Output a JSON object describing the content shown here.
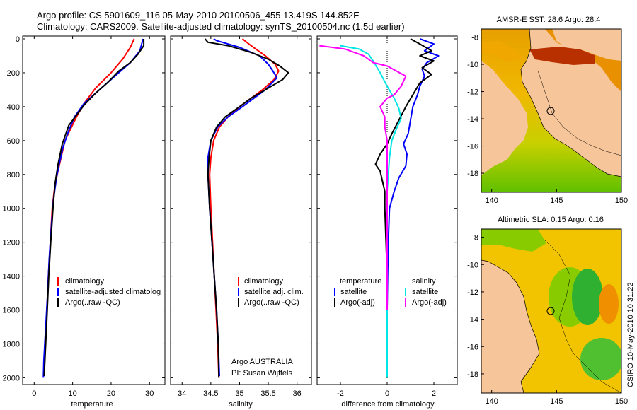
{
  "header": {
    "line1": "Argo profile: CS 5901609_116 05-May-2010 20100506_455 13.419S 144.852E",
    "line2": "Climatology: CARS2009. Satellite-adjusted climatology: synTS_20100504.nc (1.5d earlier)"
  },
  "stamp": "CSIRO 10-May-2010 10:31:22",
  "colors": {
    "climatology": "#ff0000",
    "satellite": "#0000ff",
    "argo": "#000000",
    "cyan": "#00e5e5",
    "magenta": "#ff00ff"
  },
  "chart_data": [
    {
      "type": "line",
      "xlabel": "temperature",
      "ylabel": "",
      "xlim": [
        -3,
        34
      ],
      "ylim": [
        2050,
        0
      ],
      "xticks": [
        0,
        10,
        20,
        30
      ],
      "yticks": [
        0,
        200,
        400,
        600,
        800,
        1000,
        1200,
        1400,
        1600,
        1800,
        2000
      ],
      "legend": [
        "climatology",
        "satellite-adjusted climatolog",
        "Argo(..raw -QC)"
      ],
      "series": [
        {
          "name": "climatology",
          "color": "#ff0000",
          "points": [
            [
              26,
              0
            ],
            [
              25,
              50
            ],
            [
              23,
              120
            ],
            [
              20,
              200
            ],
            [
              16,
              290
            ],
            [
              13,
              380
            ],
            [
              11,
              460
            ],
            [
              9.5,
              530
            ],
            [
              8,
              600
            ],
            [
              7,
              700
            ],
            [
              6,
              800
            ],
            [
              5.2,
              900
            ],
            [
              4.7,
              1000
            ],
            [
              4.2,
              1200
            ],
            [
              3.7,
              1400
            ],
            [
              3.3,
              1600
            ],
            [
              2.9,
              1800
            ],
            [
              2.6,
              1900
            ]
          ]
        },
        {
          "name": "satellite-adjusted climatolog",
          "color": "#0000ff",
          "points": [
            [
              28.3,
              0
            ],
            [
              27.5,
              70
            ],
            [
              25,
              140
            ],
            [
              22,
              200
            ],
            [
              17,
              300
            ],
            [
              13,
              380
            ],
            [
              10.5,
              460
            ],
            [
              9,
              540
            ],
            [
              7.5,
              640
            ],
            [
              6.5,
              740
            ],
            [
              5.8,
              820
            ],
            [
              5,
              950
            ],
            [
              4.5,
              1100
            ],
            [
              3.9,
              1300
            ],
            [
              3.5,
              1500
            ],
            [
              3,
              1700
            ],
            [
              2.5,
              1900
            ],
            [
              2.4,
              2000
            ]
          ]
        },
        {
          "name": "Argo(..raw -QC)",
          "color": "#000000",
          "points": [
            [
              28.5,
              0
            ],
            [
              28.5,
              40
            ],
            [
              27,
              90
            ],
            [
              25,
              140
            ],
            [
              22,
              190
            ],
            [
              19,
              260
            ],
            [
              16,
              320
            ],
            [
              13,
              390
            ],
            [
              11,
              450
            ],
            [
              9,
              510
            ],
            [
              7.3,
              620
            ],
            [
              6.2,
              740
            ],
            [
              5.4,
              860
            ],
            [
              4.9,
              1000
            ],
            [
              4.3,
              1200
            ],
            [
              3.8,
              1400
            ],
            [
              3.4,
              1600
            ],
            [
              3,
              1800
            ],
            [
              2.6,
              1990
            ]
          ]
        }
      ]
    },
    {
      "type": "line",
      "xlabel": "salinity",
      "ylabel": "",
      "xlim": [
        33.8,
        36.25
      ],
      "ylim": [
        2050,
        0
      ],
      "xticks": [
        34,
        34.5,
        35,
        35.5,
        36
      ],
      "legend": [
        "climatology",
        "satellite adj. clim.",
        "Argo(..raw -QC)"
      ],
      "annotation": [
        "Argo AUSTRALIA",
        "PI: Susan Wijffels"
      ],
      "series": [
        {
          "name": "climatology",
          "color": "#ff0000",
          "points": [
            [
              35.05,
              0
            ],
            [
              35.2,
              40
            ],
            [
              35.45,
              100
            ],
            [
              35.62,
              150
            ],
            [
              35.68,
              190
            ],
            [
              35.6,
              240
            ],
            [
              35.4,
              300
            ],
            [
              35.2,
              350
            ],
            [
              35,
              400
            ],
            [
              34.8,
              460
            ],
            [
              34.65,
              520
            ],
            [
              34.55,
              600
            ],
            [
              34.5,
              700
            ],
            [
              34.48,
              800
            ],
            [
              34.5,
              1000
            ],
            [
              34.53,
              1200
            ],
            [
              34.56,
              1400
            ],
            [
              34.59,
              1600
            ],
            [
              34.62,
              1800
            ],
            [
              34.64,
              2000
            ]
          ]
        },
        {
          "name": "satellite adj. clim.",
          "color": "#0000ff",
          "points": [
            [
              34.55,
              0
            ],
            [
              34.6,
              10
            ],
            [
              35.0,
              50
            ],
            [
              35.35,
              100
            ],
            [
              35.5,
              150
            ],
            [
              35.58,
              190
            ],
            [
              35.65,
              230
            ],
            [
              35.45,
              300
            ],
            [
              35.25,
              350
            ],
            [
              35.05,
              400
            ],
            [
              34.8,
              460
            ],
            [
              34.62,
              520
            ],
            [
              34.5,
              600
            ],
            [
              34.45,
              700
            ],
            [
              34.45,
              800
            ],
            [
              34.48,
              1000
            ],
            [
              34.52,
              1200
            ],
            [
              34.56,
              1400
            ],
            [
              34.6,
              1600
            ],
            [
              34.63,
              1800
            ],
            [
              34.65,
              1990
            ]
          ]
        },
        {
          "name": "Argo(..raw -QC)",
          "color": "#000000",
          "points": [
            [
              34.4,
              0
            ],
            [
              34.45,
              20
            ],
            [
              34.8,
              40
            ],
            [
              35.2,
              80
            ],
            [
              35.5,
              120
            ],
            [
              35.7,
              160
            ],
            [
              35.85,
              200
            ],
            [
              35.75,
              240
            ],
            [
              35.5,
              290
            ],
            [
              35.2,
              350
            ],
            [
              35,
              400
            ],
            [
              34.75,
              460
            ],
            [
              34.6,
              520
            ],
            [
              34.5,
              600
            ],
            [
              34.47,
              700
            ],
            [
              34.45,
              800
            ],
            [
              34.48,
              1000
            ],
            [
              34.52,
              1200
            ],
            [
              34.56,
              1400
            ],
            [
              34.6,
              1600
            ],
            [
              34.63,
              1800
            ],
            [
              34.64,
              2000
            ]
          ]
        }
      ]
    },
    {
      "type": "line",
      "xlabel": "difference from climatology",
      "ylabel": "",
      "xlim": [
        -3,
        3
      ],
      "ylim": [
        2050,
        0
      ],
      "xticks": [
        -2,
        0,
        2
      ],
      "legend_temperature": [
        "temperature",
        "satellite",
        "Argo(-adj)"
      ],
      "legend_salinity": [
        "salinity",
        "satellite",
        "Argo(-adj)"
      ],
      "series": [
        {
          "name": "temperature satellite",
          "color": "#0000ff",
          "points": [
            [
              1.4,
              0
            ],
            [
              2.0,
              30
            ],
            [
              1.6,
              70
            ],
            [
              2.2,
              100
            ],
            [
              1.7,
              140
            ],
            [
              1.5,
              180
            ],
            [
              1.6,
              220
            ],
            [
              1.4,
              280
            ],
            [
              1.3,
              330
            ],
            [
              1.1,
              400
            ],
            [
              1.0,
              480
            ],
            [
              0.9,
              560
            ],
            [
              0.7,
              620
            ],
            [
              0.85,
              680
            ],
            [
              0.8,
              750
            ],
            [
              0.5,
              820
            ],
            [
              0.3,
              900
            ],
            [
              0.1,
              1000
            ],
            [
              0.05,
              1200
            ],
            [
              0.02,
              1400
            ],
            [
              0,
              1600
            ],
            [
              0,
              1800
            ],
            [
              0,
              2000
            ]
          ]
        },
        {
          "name": "temperature Argo(-adj)",
          "color": "#000000",
          "points": [
            [
              1.0,
              0
            ],
            [
              1.4,
              30
            ],
            [
              1.9,
              70
            ],
            [
              1.4,
              100
            ],
            [
              2.0,
              130
            ],
            [
              1.5,
              170
            ],
            [
              1.9,
              210
            ],
            [
              1.4,
              260
            ],
            [
              1.1,
              330
            ],
            [
              0.8,
              400
            ],
            [
              0.5,
              480
            ],
            [
              0.2,
              560
            ],
            [
              0.0,
              620
            ],
            [
              -0.3,
              680
            ],
            [
              -0.5,
              740
            ],
            [
              -0.3,
              780
            ],
            [
              -0.2,
              840
            ],
            [
              -0.1,
              900
            ],
            [
              -0.1,
              1000
            ],
            [
              -0.05,
              1200
            ],
            [
              0,
              1400
            ],
            [
              0,
              1600
            ],
            [
              0,
              1800
            ],
            [
              0,
              2000
            ]
          ]
        },
        {
          "name": "salinity satellite",
          "color": "#00e5e5",
          "points": [
            [
              -2.0,
              40
            ],
            [
              -1.2,
              60
            ],
            [
              -0.8,
              90
            ],
            [
              -0.6,
              130
            ],
            [
              -0.3,
              200
            ],
            [
              0,
              280
            ],
            [
              0.3,
              350
            ],
            [
              0.5,
              410
            ],
            [
              0.6,
              470
            ],
            [
              0.4,
              530
            ],
            [
              0.2,
              600
            ],
            [
              0.1,
              700
            ],
            [
              0,
              900
            ],
            [
              0,
              1200
            ],
            [
              0,
              1500
            ],
            [
              0,
              1800
            ],
            [
              0,
              2000
            ]
          ]
        },
        {
          "name": "salinity Argo(-adj)",
          "color": "#ff00ff",
          "points": [
            [
              -2.9,
              40
            ],
            [
              -1.8,
              60
            ],
            [
              -1.0,
              100
            ],
            [
              -0.6,
              140
            ],
            [
              0,
              160
            ],
            [
              0.4,
              190
            ],
            [
              0.8,
              220
            ],
            [
              0.6,
              280
            ],
            [
              0.3,
              330
            ],
            [
              0,
              350
            ],
            [
              -0.3,
              400
            ],
            [
              -0.1,
              460
            ],
            [
              -0.1,
              520
            ],
            [
              0,
              600
            ],
            [
              0,
              800
            ],
            [
              0,
              1000
            ],
            [
              0,
              1200
            ],
            [
              0,
              1600
            ],
            [
              0,
              1600
            ]
          ]
        }
      ]
    },
    {
      "type": "heatmap",
      "title": "AMSR-E SST: 28.6 Argo: 28.4",
      "xticks": [
        140,
        145,
        150
      ],
      "yticks": [
        -8,
        -10,
        -12,
        -14,
        -16,
        -18
      ],
      "xlim": [
        139.2,
        150
      ],
      "ylim": [
        -19.4,
        -7.4
      ],
      "marker": [
        144.85,
        -13.42
      ]
    },
    {
      "type": "heatmap",
      "title": "Altimetric SLA: 0.15 Argo: 0.16",
      "xticks": [
        140,
        145,
        150
      ],
      "yticks": [
        -8,
        -10,
        -12,
        -14,
        -16,
        -18
      ],
      "xlim": [
        139.2,
        150
      ],
      "ylim": [
        -19.4,
        -7.4
      ],
      "marker": [
        144.85,
        -13.42
      ]
    }
  ]
}
